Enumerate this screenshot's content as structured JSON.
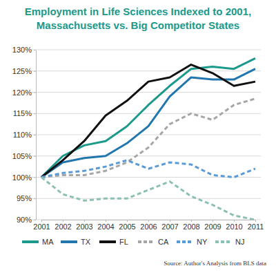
{
  "chart_data": {
    "type": "line",
    "title": "Employment in Life Sciences Indexed to 2001, Massachusetts vs. Big Competitor States",
    "source": "Source: Author's Analysis from BLS data",
    "x": [
      2001,
      2002,
      2003,
      2004,
      2005,
      2006,
      2007,
      2008,
      2009,
      2010,
      2011
    ],
    "xlim": [
      2001,
      2011
    ],
    "xticks": [
      2001,
      2002,
      2003,
      2004,
      2005,
      2006,
      2007,
      2008,
      2009,
      2010,
      2011
    ],
    "ylim": [
      90,
      130
    ],
    "yticks": [
      {
        "value": 90,
        "label": "90%"
      },
      {
        "value": 95,
        "label": "95%"
      },
      {
        "value": 100,
        "label": "100%"
      },
      {
        "value": 105,
        "label": "105%"
      },
      {
        "value": 110,
        "label": "110%"
      },
      {
        "value": 115,
        "label": "115%"
      },
      {
        "value": 120,
        "label": "120%"
      },
      {
        "value": 125,
        "label": "125%"
      },
      {
        "value": 130,
        "label": "130%"
      }
    ],
    "grid": true,
    "legend": "bottom",
    "series": [
      {
        "name": "MA",
        "color": "#1b998b",
        "line_style": "solid",
        "values": [
          100,
          105,
          107.5,
          108.5,
          112,
          117,
          121.5,
          125.5,
          126,
          125.5,
          128
        ]
      },
      {
        "name": "TX",
        "color": "#2176ae",
        "line_style": "solid",
        "values": [
          100,
          103.5,
          104.5,
          105,
          108,
          112,
          119,
          123.5,
          123,
          123,
          125.5
        ]
      },
      {
        "name": "FL",
        "color": "#111111",
        "line_style": "solid",
        "values": [
          100,
          104,
          108.5,
          114.5,
          118,
          122.5,
          123.5,
          126.5,
          124.5,
          121.5,
          122.5
        ]
      },
      {
        "name": "CA",
        "color": "#a6a6a6",
        "line_style": "dashed",
        "values": [
          100,
          100.5,
          100.5,
          101.5,
          103.5,
          107,
          112.5,
          115,
          113.5,
          117,
          118.5
        ]
      },
      {
        "name": "NY",
        "color": "#5b9bd5",
        "line_style": "dashed",
        "values": [
          100,
          101,
          101.5,
          102.5,
          104,
          102,
          103.5,
          103,
          100.5,
          100,
          102
        ]
      },
      {
        "name": "NJ",
        "color": "#8cc0b4",
        "line_style": "dashed",
        "values": [
          100,
          96,
          94.5,
          95,
          95,
          97,
          99,
          95.5,
          93.5,
          91,
          90
        ]
      }
    ]
  }
}
